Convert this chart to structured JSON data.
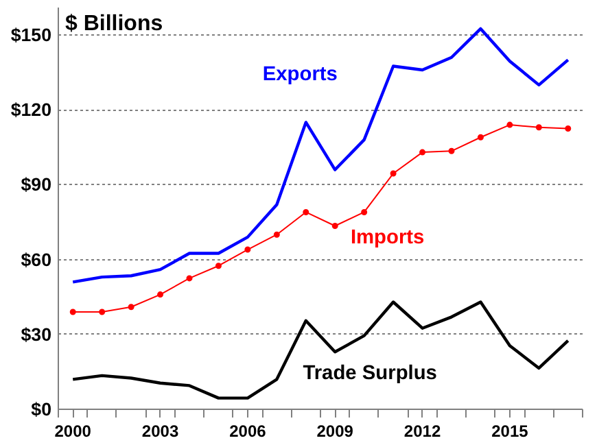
{
  "chart_data": {
    "type": "line",
    "ylabel": "$ Billions",
    "x": [
      2000,
      2001,
      2002,
      2003,
      2004,
      2005,
      2006,
      2007,
      2008,
      2009,
      2010,
      2011,
      2012,
      2013,
      2014,
      2015,
      2016,
      2017
    ],
    "series": [
      {
        "name": "Exports",
        "color": "#0000ff",
        "values": [
          51,
          53,
          53.5,
          56,
          62.5,
          62.5,
          69,
          82,
          115,
          96,
          108,
          137.5,
          136,
          141,
          152.5,
          139.5,
          130,
          140
        ]
      },
      {
        "name": "Imports",
        "color": "#ff0000",
        "marker": "circle",
        "values": [
          39,
          39,
          41,
          46,
          52.5,
          57.5,
          64,
          70,
          79,
          73.5,
          79,
          94.5,
          103,
          103.5,
          109,
          114,
          113,
          112.5
        ]
      },
      {
        "name": "Trade Surplus",
        "color": "#000000",
        "values": [
          12,
          13.5,
          12.5,
          10.5,
          9.5,
          4.5,
          4.5,
          12,
          35.5,
          23,
          29.5,
          43,
          32.5,
          37,
          43,
          25.5,
          16.5,
          27.5
        ]
      }
    ],
    "xlim": [
      1999.5,
      2017.5
    ],
    "xticks": [
      2000,
      2003,
      2006,
      2009,
      2012,
      2015,
      {
        "value": 1999.5,
        "label": null
      },
      {
        "value": 2000.5,
        "label": null
      },
      {
        "value": 2001.5,
        "label": null
      },
      {
        "value": 2002.5,
        "label": null
      },
      {
        "value": 2003.5,
        "label": null
      },
      {
        "value": 2004.5,
        "label": null
      },
      {
        "value": 2005.5,
        "label": null
      },
      {
        "value": 2006.5,
        "label": null
      },
      {
        "value": 2007.5,
        "label": null
      },
      {
        "value": 2008.5,
        "label": null
      },
      {
        "value": 2009.5,
        "label": null
      },
      {
        "value": 2010.5,
        "label": null
      },
      {
        "value": 2011.5,
        "label": null
      },
      {
        "value": 2012.5,
        "label": null
      },
      {
        "value": 2013.5,
        "label": null
      },
      {
        "value": 2014.5,
        "label": null
      },
      {
        "value": 2015.5,
        "label": null
      },
      {
        "value": 2016.5,
        "label": null
      },
      {
        "value": 2017.5,
        "label": null
      }
    ],
    "ylim": [
      0,
      161
    ],
    "yticks": [
      {
        "value": 0,
        "label": "$0"
      },
      {
        "value": 30,
        "label": "$30"
      },
      {
        "value": 60,
        "label": "$60"
      },
      {
        "value": 90,
        "label": "$90"
      },
      {
        "value": 120,
        "label": "$120"
      },
      {
        "value": 150,
        "label": "$150"
      }
    ],
    "grid": "y",
    "line_style": "solid"
  }
}
